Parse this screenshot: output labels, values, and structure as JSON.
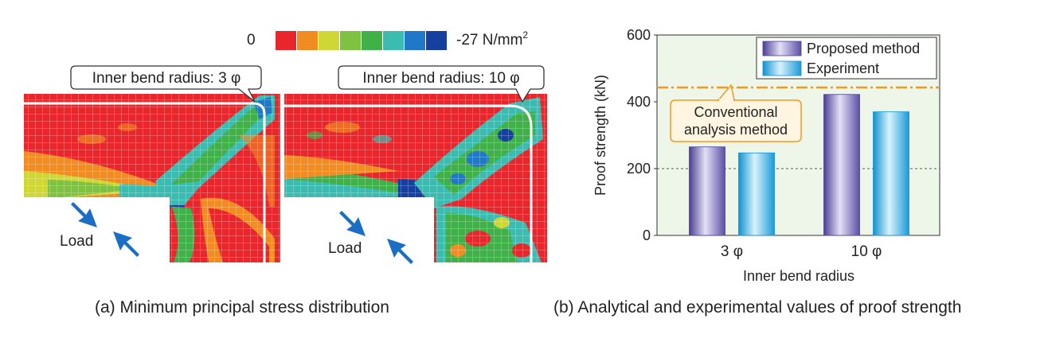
{
  "panel_a": {
    "legend": {
      "min_label": "0",
      "max_label": "-27 N/mm",
      "max_label_sup": "2",
      "colors": [
        "#e8262b",
        "#f08c22",
        "#cfd735",
        "#7fc241",
        "#40b049",
        "#3cbcb0",
        "#1f78c8",
        "#1640a0"
      ]
    },
    "maps": [
      {
        "callout": "Inner bend radius: 3 φ",
        "load_label": "Load"
      },
      {
        "callout": "Inner bend radius: 10 φ",
        "load_label": "Load"
      }
    ],
    "caption": "(a) Minimum principal stress distribution",
    "colors": {
      "red": "#e8262b",
      "orange": "#f08c22",
      "yellow_green": "#cfd735",
      "green": "#40b049",
      "cyan": "#3cbcb0",
      "blue": "#1f78c8",
      "navy": "#1640a0",
      "arrow": "#1a6fc4"
    }
  },
  "chart_data": {
    "type": "bar",
    "categories": [
      "3 φ",
      "10 φ"
    ],
    "series": [
      {
        "name": "Proposed method",
        "values": [
          265,
          422
        ],
        "color": "#7a6bc0"
      },
      {
        "name": "Experiment",
        "values": [
          247,
          370
        ],
        "color": "#1aa7e0"
      }
    ],
    "reference_line": {
      "label_lines": [
        "Conventional",
        "analysis method"
      ],
      "value": 443,
      "color": "#f29a1f"
    },
    "xlabel": "Inner bend radius",
    "ylabel": "Proof strength (kN)",
    "ylim": [
      0,
      600
    ],
    "yticks": [
      0,
      200,
      400,
      600
    ],
    "gridlines": [
      200
    ],
    "legend_position": "top-right",
    "plot_background": "#eef6ea"
  },
  "panel_b": {
    "caption": "(b) Analytical and experimental values of proof strength"
  }
}
